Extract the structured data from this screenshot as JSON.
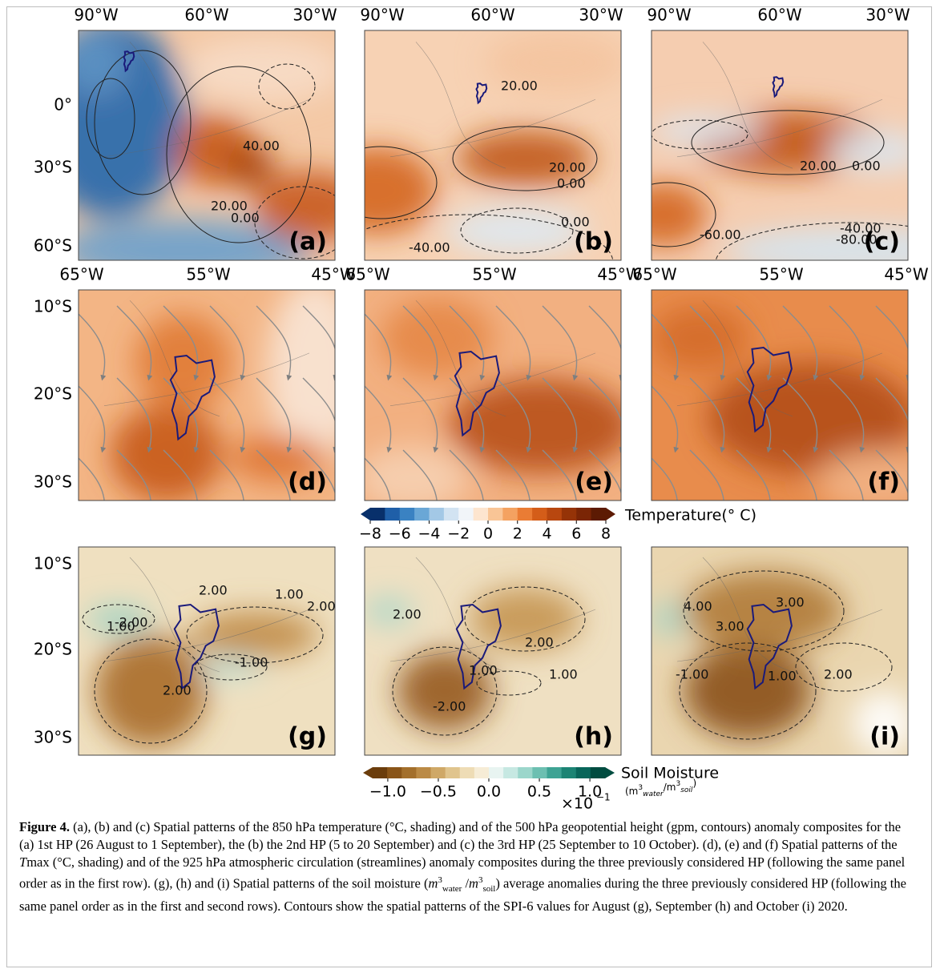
{
  "figure": {
    "row1": {
      "lon_ticks": [
        "90°W",
        "60°W",
        "30°W"
      ],
      "lat_ticks": [
        "0°",
        "30°S",
        "60°S"
      ]
    },
    "row2": {
      "lon_ticks": [
        "65°W",
        "55°W",
        "45°W"
      ],
      "lat_ticks": [
        "10°S",
        "20°S",
        "30°S"
      ]
    },
    "row3": {
      "lat_ticks": [
        "10°S",
        "20°S",
        "30°S"
      ]
    },
    "panels": [
      {
        "label": "(a)",
        "contour_labels": [
          "40.00",
          "20.00",
          "0.00"
        ]
      },
      {
        "label": "(b)",
        "contour_labels": [
          "20.00",
          "20.00",
          "0.00",
          "0.00",
          "-40.00"
        ]
      },
      {
        "label": "(c)",
        "contour_labels": [
          "20.00",
          "0.00",
          "-60.00",
          "-40.00",
          "-80.00"
        ]
      },
      {
        "label": "(d)",
        "contour_labels": []
      },
      {
        "label": "(e)",
        "contour_labels": []
      },
      {
        "label": "(f)",
        "contour_labels": []
      },
      {
        "label": "(g)",
        "contour_labels": [
          "-2.00",
          "2.00",
          "1.00",
          "1.00",
          "2.00",
          "-1.00",
          "2.00"
        ]
      },
      {
        "label": "(h)",
        "contour_labels": [
          "2.00",
          "2.00",
          "1.00",
          "1.00",
          "-2.00"
        ]
      },
      {
        "label": "(i)",
        "contour_labels": [
          "4.00",
          "3.00",
          "3.00",
          "-1.00",
          "1.00",
          "2.00"
        ]
      }
    ],
    "colorbar_temperature": {
      "title": "Temperature(° C)",
      "clim": [
        -8,
        8
      ],
      "ticks": [
        {
          "value": -8,
          "label": "−8"
        },
        {
          "value": -6,
          "label": "−6"
        },
        {
          "value": -4,
          "label": "−4"
        },
        {
          "value": -2,
          "label": "−2"
        },
        0,
        2,
        4,
        6,
        8
      ]
    },
    "colorbar_soil": {
      "title": "Soil Moisture",
      "units": [
        "(m",
        "3",
        "water",
        "/m",
        "3",
        "soil",
        ")"
      ],
      "clim": [
        -1.15,
        1.15
      ],
      "ticks": [
        {
          "value": -1.0,
          "label": "−1.0"
        },
        {
          "value": -0.5,
          "label": "−0.5"
        },
        {
          "value": 0.0,
          "label": "0.0"
        },
        0.5,
        {
          "value": 1.0,
          "label": "1.0"
        }
      ],
      "scale": "×10",
      "scale_exp": "−1"
    },
    "caption": [
      "Figure 4.",
      " (a), (b) and (c) Spatial patterns of the 850 hPa temperature (°C, shading) and of the 500 hPa geopotential height (gpm, contours) anomaly composites for the (a) 1st HP (26 August to 1 September), the (b) the 2nd HP (5 to 20 September) and (c) the 3rd HP (25 September to 10 October). (d), (e) and (f) Spatial patterns of the ",
      "T",
      "max (°C, shading) and of the 925 hPa atmospheric circulation (streamlines) anomaly composites during the three previously considered HP (following the same panel order as in the first row). (g), (h) and (i) Spatial patterns of the soil moisture (",
      "m",
      "3",
      "water",
      " /",
      "m",
      "3",
      "soil",
      ") average anomalies during the three previously considered HP (following the same panel order as in the first and second rows). Contours show the spatial patterns of the SPI-6 values for August (g), September (h) and October (i) 2020."
    ]
  }
}
